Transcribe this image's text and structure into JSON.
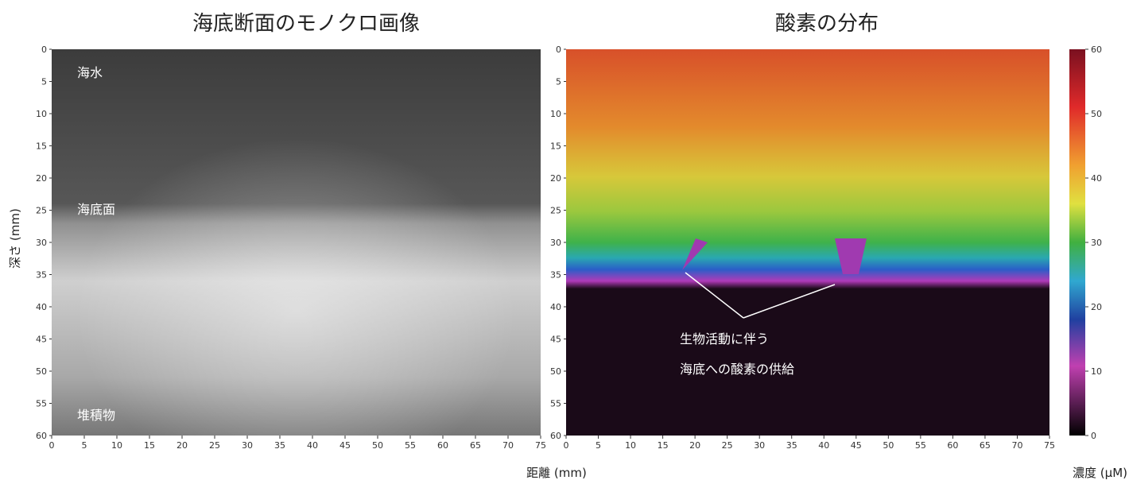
{
  "panels": [
    {
      "title": "海底断面のモノクロ画像",
      "labels": [
        "海水",
        "海底面",
        "堆積物"
      ]
    },
    {
      "title": "酸素の分布",
      "annotation": [
        "生物活動に伴う",
        "海底への酸素の供給"
      ]
    }
  ],
  "x_label": "距離 (mm)",
  "y_label": "深さ (mm)",
  "colorbar_label": "濃度 (μM)",
  "x_ticks": [
    0,
    5,
    10,
    15,
    20,
    25,
    30,
    35,
    40,
    45,
    50,
    55,
    60,
    65,
    70,
    75
  ],
  "y_ticks": [
    0,
    5,
    10,
    15,
    20,
    25,
    30,
    35,
    40,
    45,
    50,
    55,
    60
  ],
  "colorbar_ticks": [
    0,
    10,
    20,
    30,
    40,
    50,
    60
  ]
}
